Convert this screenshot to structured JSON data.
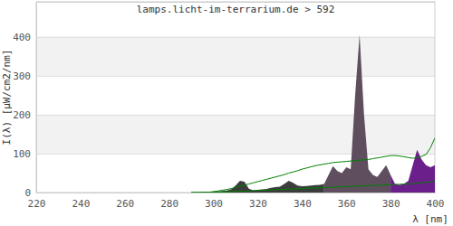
{
  "chart_data": {
    "type": "area",
    "title": "lamps.licht-im-terrarium.de > 592",
    "x_label": "λ [nm]",
    "y_label": "I(λ)  [μW/cm2/nm]",
    "x": [
      290,
      292,
      294,
      296,
      298,
      300,
      302,
      304,
      306,
      308,
      310,
      312,
      314,
      316,
      318,
      320,
      322,
      324,
      326,
      328,
      330,
      332,
      334,
      336,
      338,
      340,
      342,
      344,
      346,
      348,
      350,
      352,
      354,
      356,
      358,
      360,
      362,
      364,
      366,
      368,
      370,
      372,
      374,
      376,
      378,
      380,
      382,
      384,
      386,
      388,
      390,
      392,
      394,
      396,
      398,
      400
    ],
    "series": [
      {
        "type": "area",
        "color": "#3c3c3c",
        "values": [
          1,
          1,
          1,
          2,
          2,
          3,
          3,
          4,
          5,
          8,
          18,
          30,
          28,
          10,
          6,
          7,
          8,
          9,
          12,
          14,
          15,
          22,
          30,
          25,
          18,
          16,
          17,
          18,
          19,
          20,
          22,
          null,
          null,
          null,
          null,
          null,
          null,
          null,
          null,
          null,
          null,
          null,
          null,
          null,
          null,
          null,
          null,
          null,
          null,
          null,
          null,
          null,
          null,
          null,
          null,
          null
        ]
      },
      {
        "type": "area",
        "color": "#5e4e5e",
        "values": [
          null,
          null,
          null,
          null,
          null,
          null,
          null,
          null,
          null,
          null,
          null,
          null,
          null,
          null,
          null,
          null,
          null,
          null,
          null,
          null,
          null,
          null,
          null,
          null,
          null,
          null,
          null,
          null,
          null,
          null,
          22,
          45,
          68,
          55,
          50,
          65,
          60,
          250,
          405,
          200,
          60,
          45,
          40,
          55,
          70,
          45,
          null,
          null,
          null,
          null,
          null,
          null,
          null,
          null,
          null,
          null
        ]
      },
      {
        "type": "area",
        "color": "#6b1f8a",
        "values": [
          null,
          null,
          null,
          null,
          null,
          null,
          null,
          null,
          null,
          null,
          null,
          null,
          null,
          null,
          null,
          null,
          null,
          null,
          null,
          null,
          null,
          null,
          null,
          null,
          null,
          null,
          null,
          null,
          null,
          null,
          null,
          null,
          null,
          null,
          null,
          null,
          null,
          null,
          null,
          null,
          null,
          null,
          null,
          null,
          null,
          45,
          22,
          20,
          22,
          30,
          70,
          110,
          85,
          70,
          65,
          70
        ]
      },
      {
        "type": "line",
        "color": "#008000",
        "values": [
          0,
          0,
          0,
          1,
          1,
          2,
          4,
          6,
          8,
          10,
          13,
          16,
          19,
          22,
          25,
          28,
          31,
          34,
          37,
          40,
          43,
          46,
          50,
          53,
          56,
          60,
          63,
          66,
          69,
          71,
          73,
          75,
          77,
          78,
          79,
          80,
          81,
          82,
          83,
          84,
          85,
          87,
          89,
          91,
          93,
          95,
          95,
          94,
          92,
          90,
          88,
          90,
          93,
          98,
          115,
          140
        ]
      },
      {
        "type": "line",
        "color": "#008000",
        "values": [
          0,
          0,
          0,
          0,
          0,
          0,
          1,
          1,
          2,
          2,
          3,
          3,
          4,
          4,
          5,
          5,
          6,
          6,
          7,
          7,
          8,
          8,
          9,
          9,
          10,
          10,
          11,
          11,
          12,
          12,
          13,
          13,
          14,
          14,
          15,
          15,
          16,
          16,
          17,
          17,
          18,
          18,
          19,
          19,
          20,
          20,
          21,
          21,
          22,
          22,
          23,
          24,
          25,
          26,
          28,
          30
        ]
      }
    ],
    "xlim": [
      220,
      400
    ],
    "xticks": [
      220,
      240,
      260,
      280,
      300,
      320,
      340,
      360,
      380,
      400
    ],
    "ylim": [
      0,
      490
    ],
    "yticks": [
      0,
      100,
      200,
      300,
      400
    ],
    "grid": true
  }
}
